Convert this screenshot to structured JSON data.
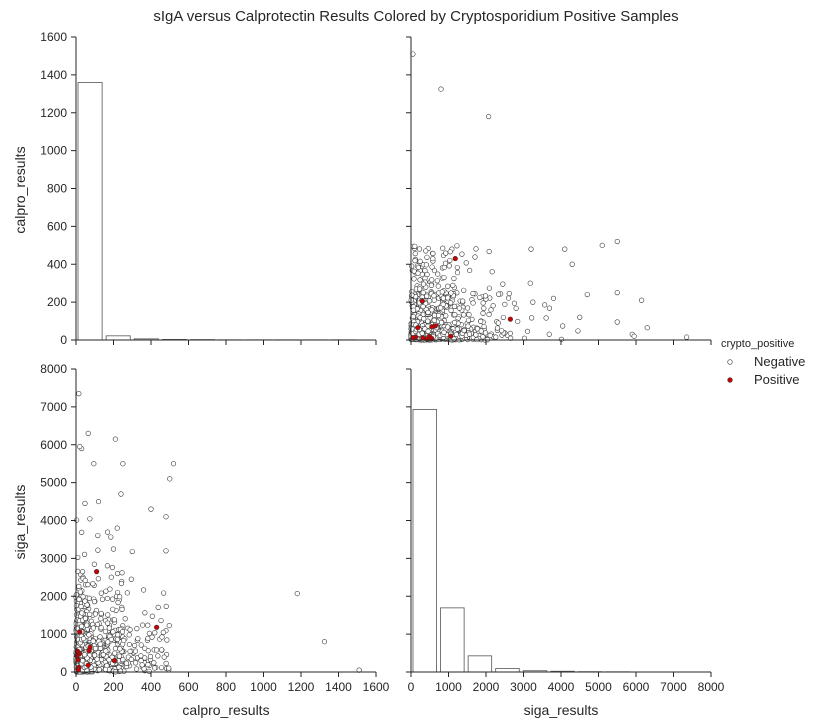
{
  "chart_data": {
    "type": "scatter",
    "title": "sIgA versus Calprotectin Results Colored by Cryptosporidium Positive Samples",
    "variables": [
      "calpro_results",
      "siga_results"
    ],
    "legend": {
      "title": "crypto_positive",
      "placement": "right",
      "entries": [
        {
          "label": "Negative",
          "color": "#ffffff"
        },
        {
          "label": "Positive",
          "color": "#cc0000"
        }
      ]
    },
    "grid": false,
    "axes": {
      "calpro_results": {
        "range": [
          0,
          1600
        ],
        "ticks": [
          "0",
          "200",
          "400",
          "600",
          "800",
          "1000",
          "1200",
          "1400",
          "1600"
        ]
      },
      "siga_results": {
        "range": [
          0,
          8000
        ],
        "ticks": [
          "0",
          "1000",
          "2000",
          "3000",
          "4000",
          "5000",
          "6000",
          "7000",
          "8000"
        ]
      },
      "calpro_count": {
        "range": [
          0,
          1600
        ],
        "ticks": [
          "0",
          "200",
          "400",
          "600",
          "800",
          "1000",
          "1200",
          "1400",
          "1600"
        ]
      }
    },
    "hist_calpro": {
      "bin_edges": [
        0,
        150,
        300,
        450,
        600,
        750,
        900,
        1050,
        1200,
        1350,
        1500
      ],
      "counts": [
        1360,
        22,
        6,
        3,
        2,
        1,
        1,
        1,
        1,
        1
      ]
    },
    "hist_siga": {
      "bin_edges": [
        0,
        735,
        1470,
        2205,
        2940,
        3675,
        4410,
        5145,
        5880,
        6615,
        7350
      ],
      "counts": [
        5200,
        1270,
        320,
        70,
        25,
        15,
        6,
        4,
        2,
        1
      ],
      "count_range": [
        0,
        6000
      ]
    },
    "positive_points": [
      {
        "siga": 1180,
        "calpro": 430
      },
      {
        "siga": 2650,
        "calpro": 110
      },
      {
        "siga": 300,
        "calpro": 205
      },
      {
        "siga": 650,
        "calpro": 75
      },
      {
        "siga": 560,
        "calpro": 70
      },
      {
        "siga": 180,
        "calpro": 65
      },
      {
        "siga": 1060,
        "calpro": 20
      },
      {
        "siga": 480,
        "calpro": 18
      },
      {
        "siga": 120,
        "calpro": 15
      },
      {
        "siga": 50,
        "calpro": 12
      },
      {
        "siga": 320,
        "calpro": 10
      },
      {
        "siga": 550,
        "calpro": 8
      },
      {
        "siga": 430,
        "calpro": 5
      }
    ],
    "negative_outliers": [
      {
        "siga": 50,
        "calpro": 1510
      },
      {
        "siga": 800,
        "calpro": 1325
      },
      {
        "siga": 2070,
        "calpro": 1180
      },
      {
        "siga": 7350,
        "calpro": 15
      },
      {
        "siga": 6300,
        "calpro": 65
      },
      {
        "siga": 6150,
        "calpro": 210
      },
      {
        "siga": 5500,
        "calpro": 520
      },
      {
        "siga": 5500,
        "calpro": 250
      },
      {
        "siga": 5500,
        "calpro": 95
      },
      {
        "siga": 5100,
        "calpro": 500
      },
      {
        "siga": 4700,
        "calpro": 240
      },
      {
        "siga": 4300,
        "calpro": 400
      },
      {
        "siga": 4100,
        "calpro": 480
      },
      {
        "siga": 3200,
        "calpro": 480
      },
      {
        "siga": 5900,
        "calpro": 30
      },
      {
        "siga": 5950,
        "calpro": 20
      },
      {
        "siga": 4500,
        "calpro": 120
      },
      {
        "siga": 3800,
        "calpro": 220
      }
    ]
  }
}
